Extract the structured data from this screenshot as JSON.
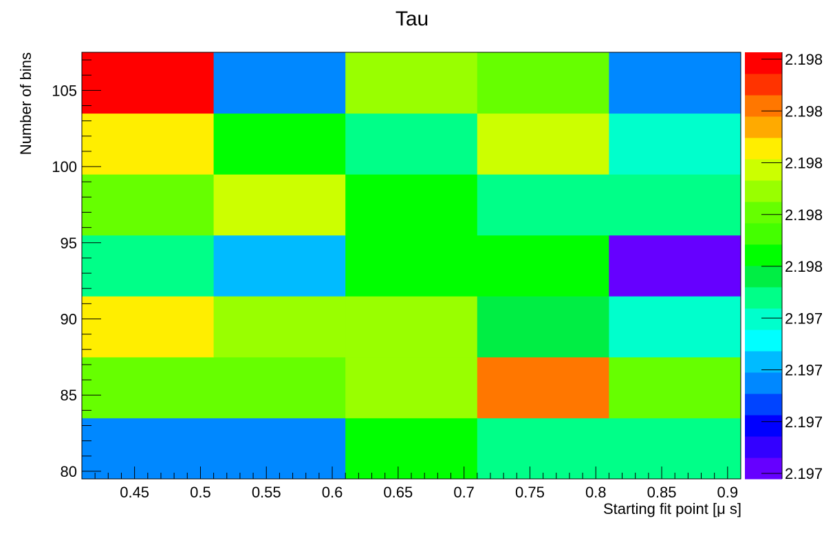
{
  "chart_data": {
    "type": "heatmap",
    "title": "Tau",
    "xlabel": "Starting fit point [μ s]",
    "ylabel": "Number of bins",
    "x_edges": [
      0.41,
      0.51,
      0.61,
      0.71,
      0.81,
      0.91
    ],
    "y_edges": [
      79.5,
      83.5,
      87.5,
      91.5,
      95.5,
      99.5,
      103.5,
      107.5
    ],
    "xlim": [
      0.41,
      0.91
    ],
    "ylim": [
      79.5,
      107.5
    ],
    "x_ticks": [
      "0.45",
      "0.5",
      "0.55",
      "0.6",
      "0.65",
      "0.7",
      "0.75",
      "0.8",
      "0.85",
      "0.9"
    ],
    "x_tick_values": [
      0.45,
      0.5,
      0.55,
      0.6,
      0.65,
      0.7,
      0.75,
      0.8,
      0.85,
      0.9
    ],
    "y_ticks": [
      "80",
      "85",
      "90",
      "95",
      "100",
      "105"
    ],
    "y_tick_values": [
      80,
      85,
      90,
      95,
      100,
      105
    ],
    "z_bin_colors_bottom_to_top": [
      "#6600ff",
      "#3300ff",
      "#0000ff",
      "#0044ff",
      "#0088ff",
      "#00bbff",
      "#00ffff",
      "#00ffcc",
      "#00ff88",
      "#00ee44",
      "#00ff00",
      "#44ff00",
      "#66ff00",
      "#99ff00",
      "#ccff00",
      "#ffee00",
      "#ffaa00",
      "#ff7700",
      "#ff3300",
      "#ff0000"
    ],
    "z_axis_labels": [
      "2.197",
      "2.197",
      "2.197",
      "2.197",
      "2.198",
      "2.198",
      "2.198",
      "2.198",
      "2.198"
    ],
    "grid": false,
    "cells_color_index_by_row_bottom_to_top": [
      [
        4,
        4,
        10,
        8,
        8
      ],
      [
        12,
        12,
        13,
        17,
        12
      ],
      [
        15,
        13,
        13,
        9,
        7
      ],
      [
        8,
        5,
        10,
        10,
        0
      ],
      [
        12,
        14,
        10,
        8,
        8
      ],
      [
        15,
        10,
        8,
        14,
        7
      ],
      [
        19,
        4,
        13,
        12,
        4
      ]
    ]
  }
}
